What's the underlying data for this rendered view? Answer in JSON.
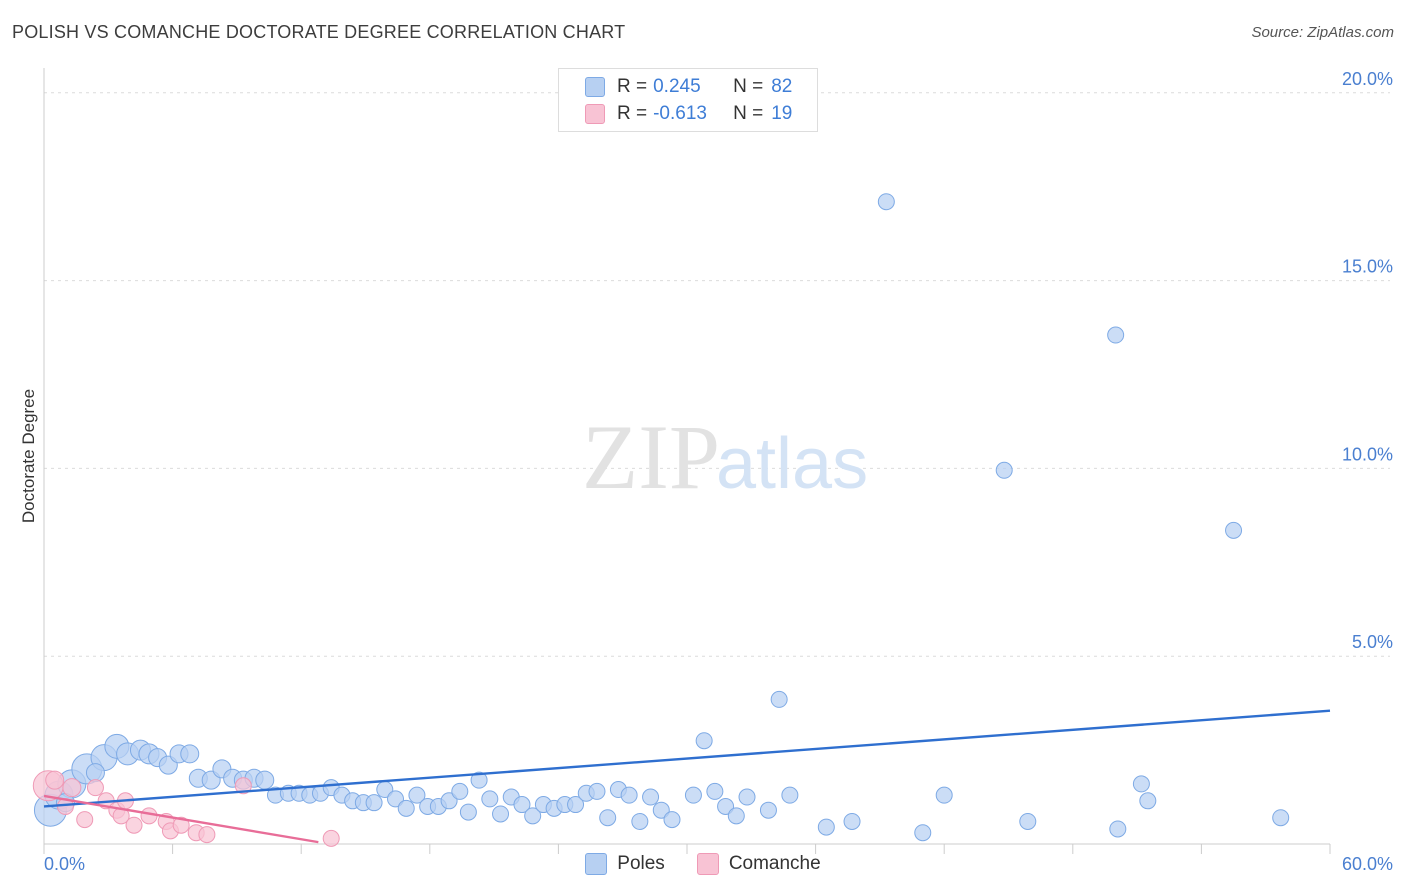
{
  "header": {
    "title": "POLISH VS COMANCHE DOCTORATE DEGREE CORRELATION CHART",
    "source": "Source: ZipAtlas.com"
  },
  "watermark": {
    "zip": "ZIP",
    "atlas": "atlas"
  },
  "legend": {
    "rows": [
      {
        "r_label": "R =",
        "r_value": "0.245",
        "n_label": "N =",
        "n_value": "82"
      },
      {
        "r_label": "R =",
        "r_value": "-0.613",
        "n_label": "N =",
        "n_value": "19"
      }
    ]
  },
  "colors": {
    "poles_fill": "#b7d0f2",
    "poles_stroke": "#7eaae5",
    "poles_line": "#2f6fcf",
    "comanche_fill": "#f8c3d4",
    "comanche_stroke": "#ef9ab6",
    "comanche_line": "#e86d98",
    "grid": "#dcdcdc",
    "tick": "#4a7fd0"
  },
  "chart_data": {
    "type": "scatter",
    "title": "POLISH VS COMANCHE DOCTORATE DEGREE CORRELATION CHART",
    "xlabel": "",
    "ylabel": "Doctorate Degree",
    "xlim": [
      0,
      60
    ],
    "ylim": [
      0,
      20.5
    ],
    "x_tick_labels": [
      "0.0%",
      "60.0%"
    ],
    "y_ticks": [
      5,
      10,
      15,
      20
    ],
    "y_tick_labels": [
      "5.0%",
      "10.0%",
      "15.0%",
      "20.0%"
    ],
    "grid": true,
    "legend_position": "bottom",
    "series": [
      {
        "name": "Poles",
        "r": 0.245,
        "n": 82,
        "trend": {
          "x": [
            0,
            60
          ],
          "y": [
            1.0,
            3.55
          ]
        },
        "points": [
          {
            "x": 0.3,
            "y": 0.9,
            "s": 16
          },
          {
            "x": 0.7,
            "y": 1.3,
            "s": 14
          },
          {
            "x": 1.3,
            "y": 1.6,
            "s": 14
          },
          {
            "x": 2.0,
            "y": 2.0,
            "s": 15
          },
          {
            "x": 2.8,
            "y": 2.3,
            "s": 13
          },
          {
            "x": 3.4,
            "y": 2.6,
            "s": 12
          },
          {
            "x": 3.9,
            "y": 2.4,
            "s": 11
          },
          {
            "x": 4.5,
            "y": 2.5,
            "s": 10
          },
          {
            "x": 4.9,
            "y": 2.4,
            "s": 10
          },
          {
            "x": 5.3,
            "y": 2.3,
            "s": 9
          },
          {
            "x": 5.8,
            "y": 2.1,
            "s": 9
          },
          {
            "x": 6.3,
            "y": 2.4,
            "s": 9
          },
          {
            "x": 6.8,
            "y": 2.4,
            "s": 9
          },
          {
            "x": 7.2,
            "y": 1.75,
            "s": 9
          },
          {
            "x": 7.8,
            "y": 1.7,
            "s": 9
          },
          {
            "x": 8.3,
            "y": 2.0,
            "s": 9
          },
          {
            "x": 8.8,
            "y": 1.75,
            "s": 9
          },
          {
            "x": 9.3,
            "y": 1.7,
            "s": 9
          },
          {
            "x": 9.8,
            "y": 1.75,
            "s": 9
          },
          {
            "x": 10.3,
            "y": 1.7,
            "s": 9
          },
          {
            "x": 10.8,
            "y": 1.3,
            "s": 8
          },
          {
            "x": 11.4,
            "y": 1.35,
            "s": 8
          },
          {
            "x": 11.9,
            "y": 1.35,
            "s": 8
          },
          {
            "x": 12.4,
            "y": 1.3,
            "s": 8
          },
          {
            "x": 12.9,
            "y": 1.35,
            "s": 8
          },
          {
            "x": 13.4,
            "y": 1.5,
            "s": 8
          },
          {
            "x": 13.9,
            "y": 1.3,
            "s": 8
          },
          {
            "x": 14.4,
            "y": 1.15,
            "s": 8
          },
          {
            "x": 14.9,
            "y": 1.1,
            "s": 8
          },
          {
            "x": 15.4,
            "y": 1.1,
            "s": 8
          },
          {
            "x": 15.9,
            "y": 1.45,
            "s": 8
          },
          {
            "x": 16.4,
            "y": 1.2,
            "s": 8
          },
          {
            "x": 16.9,
            "y": 0.95,
            "s": 8
          },
          {
            "x": 17.4,
            "y": 1.3,
            "s": 8
          },
          {
            "x": 17.9,
            "y": 1.0,
            "s": 8
          },
          {
            "x": 18.4,
            "y": 1.0,
            "s": 8
          },
          {
            "x": 18.9,
            "y": 1.15,
            "s": 8
          },
          {
            "x": 19.4,
            "y": 1.4,
            "s": 8
          },
          {
            "x": 19.8,
            "y": 0.85,
            "s": 8
          },
          {
            "x": 20.3,
            "y": 1.7,
            "s": 8
          },
          {
            "x": 20.8,
            "y": 1.2,
            "s": 8
          },
          {
            "x": 21.3,
            "y": 0.8,
            "s": 8
          },
          {
            "x": 21.8,
            "y": 1.25,
            "s": 8
          },
          {
            "x": 22.3,
            "y": 1.05,
            "s": 8
          },
          {
            "x": 22.8,
            "y": 0.75,
            "s": 8
          },
          {
            "x": 23.3,
            "y": 1.05,
            "s": 8
          },
          {
            "x": 23.8,
            "y": 0.95,
            "s": 8
          },
          {
            "x": 24.3,
            "y": 1.05,
            "s": 8
          },
          {
            "x": 24.8,
            "y": 1.05,
            "s": 8
          },
          {
            "x": 25.3,
            "y": 1.35,
            "s": 8
          },
          {
            "x": 25.8,
            "y": 1.4,
            "s": 8
          },
          {
            "x": 26.3,
            "y": 0.7,
            "s": 8
          },
          {
            "x": 26.8,
            "y": 1.45,
            "s": 8
          },
          {
            "x": 27.3,
            "y": 1.3,
            "s": 8
          },
          {
            "x": 27.8,
            "y": 0.6,
            "s": 8
          },
          {
            "x": 28.3,
            "y": 1.25,
            "s": 8
          },
          {
            "x": 28.8,
            "y": 0.9,
            "s": 8
          },
          {
            "x": 29.3,
            "y": 0.65,
            "s": 8
          },
          {
            "x": 30.3,
            "y": 1.3,
            "s": 8
          },
          {
            "x": 30.8,
            "y": 2.75,
            "s": 8
          },
          {
            "x": 31.3,
            "y": 1.4,
            "s": 8
          },
          {
            "x": 31.8,
            "y": 1.0,
            "s": 8
          },
          {
            "x": 32.3,
            "y": 0.75,
            "s": 8
          },
          {
            "x": 32.8,
            "y": 1.25,
            "s": 8
          },
          {
            "x": 33.8,
            "y": 0.9,
            "s": 8
          },
          {
            "x": 34.3,
            "y": 3.85,
            "s": 8
          },
          {
            "x": 34.8,
            "y": 1.3,
            "s": 8
          },
          {
            "x": 36.5,
            "y": 0.45,
            "s": 8
          },
          {
            "x": 37.7,
            "y": 0.6,
            "s": 8
          },
          {
            "x": 39.3,
            "y": 17.1,
            "s": 8
          },
          {
            "x": 41.0,
            "y": 0.3,
            "s": 8
          },
          {
            "x": 42.0,
            "y": 1.3,
            "s": 8
          },
          {
            "x": 44.8,
            "y": 9.95,
            "s": 8
          },
          {
            "x": 45.9,
            "y": 0.6,
            "s": 8
          },
          {
            "x": 50.0,
            "y": 13.55,
            "s": 8
          },
          {
            "x": 50.1,
            "y": 0.4,
            "s": 8
          },
          {
            "x": 51.2,
            "y": 1.6,
            "s": 8
          },
          {
            "x": 51.5,
            "y": 1.15,
            "s": 8
          },
          {
            "x": 55.5,
            "y": 8.35,
            "s": 8
          },
          {
            "x": 57.7,
            "y": 0.7,
            "s": 8
          },
          {
            "x": 1.0,
            "y": 1.1,
            "s": 9
          },
          {
            "x": 2.4,
            "y": 1.9,
            "s": 9
          }
        ]
      },
      {
        "name": "Comanche",
        "r": -0.613,
        "n": 19,
        "trend": {
          "x": [
            0,
            12.8
          ],
          "y": [
            1.28,
            0.05
          ]
        },
        "points": [
          {
            "x": 0.2,
            "y": 1.55,
            "s": 15
          },
          {
            "x": 0.5,
            "y": 1.7,
            "s": 9
          },
          {
            "x": 1.3,
            "y": 1.5,
            "s": 9
          },
          {
            "x": 1.0,
            "y": 1.0,
            "s": 8
          },
          {
            "x": 1.9,
            "y": 0.65,
            "s": 8
          },
          {
            "x": 2.4,
            "y": 1.5,
            "s": 8
          },
          {
            "x": 2.9,
            "y": 1.15,
            "s": 8
          },
          {
            "x": 3.4,
            "y": 0.9,
            "s": 8
          },
          {
            "x": 3.6,
            "y": 0.75,
            "s": 8
          },
          {
            "x": 3.8,
            "y": 1.15,
            "s": 8
          },
          {
            "x": 4.2,
            "y": 0.5,
            "s": 8
          },
          {
            "x": 4.9,
            "y": 0.75,
            "s": 8
          },
          {
            "x": 5.7,
            "y": 0.6,
            "s": 8
          },
          {
            "x": 5.9,
            "y": 0.35,
            "s": 8
          },
          {
            "x": 6.4,
            "y": 0.5,
            "s": 8
          },
          {
            "x": 7.1,
            "y": 0.3,
            "s": 8
          },
          {
            "x": 7.6,
            "y": 0.25,
            "s": 8
          },
          {
            "x": 9.3,
            "y": 1.55,
            "s": 8
          },
          {
            "x": 13.4,
            "y": 0.15,
            "s": 8
          }
        ]
      }
    ]
  }
}
